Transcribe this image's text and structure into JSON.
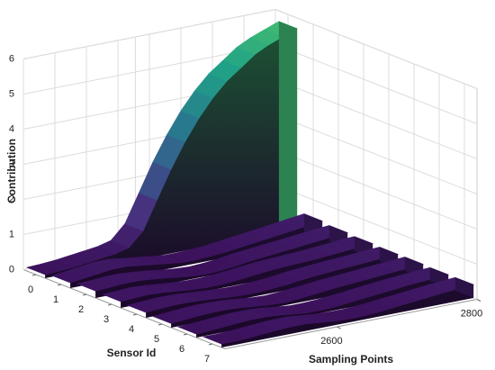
{
  "chart_data": {
    "type": "ribbon3d",
    "xlabel": "Sampling Points",
    "ylabel": "Sensor Id",
    "zlabel": "Contribution",
    "x": [
      2440,
      2460,
      2480,
      2500,
      2520,
      2540,
      2560,
      2580,
      2600,
      2620,
      2640,
      2660,
      2680,
      2700,
      2720,
      2740,
      2760,
      2780,
      2800
    ],
    "xlim": [
      2440,
      2800
    ],
    "xticks": [
      2600,
      2800
    ],
    "ylim": [
      -0.5,
      7.5
    ],
    "yticks": [
      0,
      1,
      2,
      3,
      4,
      5,
      6,
      7
    ],
    "zlim": [
      0,
      6
    ],
    "zticks": [
      0,
      1,
      2,
      3,
      4,
      5,
      6
    ],
    "grid": true,
    "colormap": [
      "#3b0f5a",
      "#46327e",
      "#365c8d",
      "#277f8e",
      "#1fa187",
      "#4ac16d"
    ],
    "series": [
      {
        "values": [
          0.1,
          0.12,
          0.15,
          0.2,
          0.25,
          0.3,
          0.4,
          0.8,
          1.6,
          2.4,
          3.1,
          3.7,
          4.2,
          4.6,
          4.9,
          5.2,
          5.4,
          5.55,
          5.7
        ]
      },
      {
        "values": [
          0.15,
          0.2,
          0.25,
          0.3,
          0.3,
          0.25,
          0.2,
          0.15,
          0.1,
          0.1,
          0.12,
          0.15,
          0.2,
          0.25,
          0.3,
          0.35,
          0.4,
          0.45,
          0.5
        ]
      },
      {
        "values": [
          0.2,
          0.22,
          0.25,
          0.25,
          0.22,
          0.18,
          0.12,
          0.08,
          0.06,
          0.08,
          0.12,
          0.18,
          0.22,
          0.26,
          0.3,
          0.34,
          0.38,
          0.42,
          0.45
        ]
      },
      {
        "values": [
          0.18,
          0.2,
          0.22,
          0.2,
          0.16,
          0.12,
          0.1,
          0.1,
          0.12,
          0.16,
          0.2,
          0.24,
          0.26,
          0.28,
          0.3,
          0.33,
          0.36,
          0.4,
          0.42
        ]
      },
      {
        "values": [
          0.15,
          0.18,
          0.2,
          0.2,
          0.18,
          0.15,
          0.12,
          0.1,
          0.1,
          0.12,
          0.15,
          0.2,
          0.24,
          0.27,
          0.3,
          0.32,
          0.35,
          0.38,
          0.4
        ]
      },
      {
        "values": [
          0.12,
          0.15,
          0.18,
          0.2,
          0.2,
          0.18,
          0.14,
          0.1,
          0.08,
          0.1,
          0.14,
          0.18,
          0.22,
          0.25,
          0.28,
          0.31,
          0.34,
          0.37,
          0.4
        ]
      },
      {
        "values": [
          0.1,
          0.12,
          0.15,
          0.18,
          0.2,
          0.2,
          0.17,
          0.12,
          0.08,
          0.08,
          0.1,
          0.14,
          0.18,
          0.22,
          0.26,
          0.3,
          0.33,
          0.36,
          0.38
        ]
      },
      {
        "values": [
          0.1,
          0.1,
          0.12,
          0.15,
          0.18,
          0.2,
          0.2,
          0.16,
          0.12,
          0.1,
          0.1,
          0.12,
          0.16,
          0.2,
          0.24,
          0.28,
          0.32,
          0.35,
          0.38
        ]
      }
    ]
  }
}
